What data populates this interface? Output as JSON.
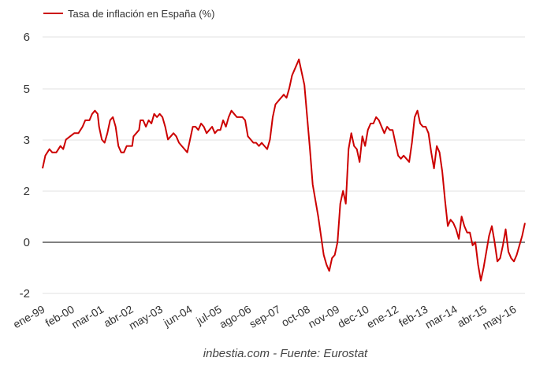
{
  "chart_data": {
    "type": "line",
    "legend": {
      "placement": "top-left",
      "label": "Tasa de inflación en España (%)"
    },
    "series": [
      {
        "name": "Tasa de inflación en España (%)",
        "color": "#cc0000",
        "points": [
          [
            0,
            1.9
          ],
          [
            2,
            2.3
          ],
          [
            5,
            2.5
          ],
          [
            7,
            2.4
          ],
          [
            10,
            2.4
          ],
          [
            13,
            2.6
          ],
          [
            15,
            2.5
          ],
          [
            17,
            2.8
          ],
          [
            20,
            2.9
          ],
          [
            23,
            3.0
          ],
          [
            26,
            3.0
          ],
          [
            29,
            3.2
          ],
          [
            31,
            3.4
          ],
          [
            34,
            3.4
          ],
          [
            36,
            3.6
          ],
          [
            38,
            3.7
          ],
          [
            40,
            3.6
          ],
          [
            41,
            3.2
          ],
          [
            43,
            2.8
          ],
          [
            45,
            2.7
          ],
          [
            47,
            3.0
          ],
          [
            49,
            3.4
          ],
          [
            51,
            3.5
          ],
          [
            53,
            3.2
          ],
          [
            55,
            2.6
          ],
          [
            57,
            2.4
          ],
          [
            59,
            2.4
          ],
          [
            61,
            2.6
          ],
          [
            63,
            2.6
          ],
          [
            65,
            2.6
          ],
          [
            66,
            2.9
          ],
          [
            68,
            3.0
          ],
          [
            70,
            3.1
          ],
          [
            71,
            3.4
          ],
          [
            73,
            3.4
          ],
          [
            75,
            3.2
          ],
          [
            77,
            3.4
          ],
          [
            79,
            3.3
          ],
          [
            81,
            3.6
          ],
          [
            83,
            3.5
          ],
          [
            85,
            3.6
          ],
          [
            87,
            3.5
          ],
          [
            89,
            3.2
          ],
          [
            91,
            2.8
          ],
          [
            93,
            2.9
          ],
          [
            95,
            3.0
          ],
          [
            97,
            2.9
          ],
          [
            99,
            2.7
          ],
          [
            101,
            2.6
          ],
          [
            103,
            2.5
          ],
          [
            105,
            2.4
          ],
          [
            107,
            2.8
          ],
          [
            109,
            3.2
          ],
          [
            111,
            3.2
          ],
          [
            113,
            3.1
          ],
          [
            115,
            3.3
          ],
          [
            117,
            3.2
          ],
          [
            119,
            3.0
          ],
          [
            121,
            3.1
          ],
          [
            123,
            3.2
          ],
          [
            125,
            3.0
          ],
          [
            127,
            3.1
          ],
          [
            129,
            3.1
          ],
          [
            131,
            3.4
          ],
          [
            133,
            3.2
          ],
          [
            135,
            3.5
          ],
          [
            137,
            3.7
          ],
          [
            139,
            3.6
          ],
          [
            141,
            3.5
          ],
          [
            143,
            3.5
          ],
          [
            145,
            3.5
          ],
          [
            147,
            3.4
          ],
          [
            149,
            2.9
          ],
          [
            151,
            2.8
          ],
          [
            153,
            2.7
          ],
          [
            155,
            2.7
          ],
          [
            157,
            2.6
          ],
          [
            159,
            2.7
          ],
          [
            161,
            2.6
          ],
          [
            163,
            2.5
          ],
          [
            165,
            2.8
          ],
          [
            167,
            3.5
          ],
          [
            169,
            3.9
          ],
          [
            171,
            4.0
          ],
          [
            173,
            4.1
          ],
          [
            175,
            4.2
          ],
          [
            177,
            4.1
          ],
          [
            179,
            4.4
          ],
          [
            181,
            4.8
          ],
          [
            183,
            5.0
          ],
          [
            185,
            5.2
          ],
          [
            186,
            5.3
          ],
          [
            188,
            4.9
          ],
          [
            190,
            4.5
          ],
          [
            192,
            3.5
          ],
          [
            194,
            2.5
          ],
          [
            196,
            1.4
          ],
          [
            198,
            0.9
          ],
          [
            200,
            0.4
          ],
          [
            202,
            -0.2
          ],
          [
            204,
            -0.8
          ],
          [
            206,
            -1.1
          ],
          [
            208,
            -1.3
          ],
          [
            210,
            -0.9
          ],
          [
            212,
            -0.8
          ],
          [
            214,
            -0.4
          ],
          [
            216,
            0.8
          ],
          [
            218,
            1.2
          ],
          [
            220,
            0.8
          ],
          [
            222,
            2.5
          ],
          [
            224,
            3.0
          ],
          [
            226,
            2.6
          ],
          [
            228,
            2.5
          ],
          [
            230,
            2.1
          ],
          [
            232,
            2.9
          ],
          [
            234,
            2.6
          ],
          [
            236,
            3.1
          ],
          [
            238,
            3.3
          ],
          [
            240,
            3.3
          ],
          [
            242,
            3.5
          ],
          [
            244,
            3.4
          ],
          [
            246,
            3.2
          ],
          [
            248,
            3.0
          ],
          [
            250,
            3.2
          ],
          [
            252,
            3.1
          ],
          [
            254,
            3.1
          ],
          [
            256,
            2.7
          ],
          [
            258,
            2.3
          ],
          [
            260,
            2.2
          ],
          [
            262,
            2.3
          ],
          [
            264,
            2.2
          ],
          [
            266,
            2.1
          ],
          [
            268,
            2.7
          ],
          [
            270,
            3.5
          ],
          [
            272,
            3.7
          ],
          [
            274,
            3.3
          ],
          [
            276,
            3.2
          ],
          [
            278,
            3.2
          ],
          [
            280,
            3.0
          ],
          [
            282,
            2.4
          ],
          [
            284,
            1.9
          ],
          [
            286,
            2.6
          ],
          [
            288,
            2.4
          ],
          [
            290,
            1.8
          ],
          [
            292,
            0.9
          ],
          [
            294,
            0.1
          ],
          [
            296,
            0.3
          ],
          [
            298,
            0.2
          ],
          [
            300,
            0.0
          ],
          [
            302,
            -0.3
          ],
          [
            304,
            0.4
          ],
          [
            306,
            0.1
          ],
          [
            308,
            -0.1
          ],
          [
            310,
            -0.1
          ],
          [
            312,
            -0.5
          ],
          [
            314,
            -0.4
          ],
          [
            316,
            -1.1
          ],
          [
            318,
            -1.6
          ],
          [
            320,
            -1.2
          ],
          [
            322,
            -0.7
          ],
          [
            324,
            -0.2
          ],
          [
            326,
            0.1
          ],
          [
            328,
            -0.4
          ],
          [
            330,
            -1.0
          ],
          [
            332,
            -0.9
          ],
          [
            334,
            -0.5
          ],
          [
            336,
            0.0
          ],
          [
            338,
            -0.7
          ],
          [
            340,
            -0.9
          ],
          [
            342,
            -1.0
          ],
          [
            344,
            -0.8
          ],
          [
            346,
            -0.5
          ],
          [
            348,
            -0.2
          ],
          [
            350,
            0.2
          ]
        ]
      }
    ],
    "yaxis": {
      "ticks": [
        "-2",
        "0",
        "2",
        "3",
        "5",
        "6"
      ],
      "range": [
        -2,
        6
      ]
    },
    "xaxis": {
      "ticks": [
        "ene-99",
        "feb-00",
        "mar-01",
        "abr-02",
        "may-03",
        "jun-04",
        "jul-05",
        "ago-06",
        "sep-07",
        "oct-08",
        "nov-09",
        "dec-10",
        "ene-12",
        "feb-13",
        "mar-14",
        "abr-15",
        "may-16"
      ],
      "range": [
        0,
        350
      ]
    },
    "grid": true
  },
  "footer": "inbestia.com - Fuente: Eurostat"
}
